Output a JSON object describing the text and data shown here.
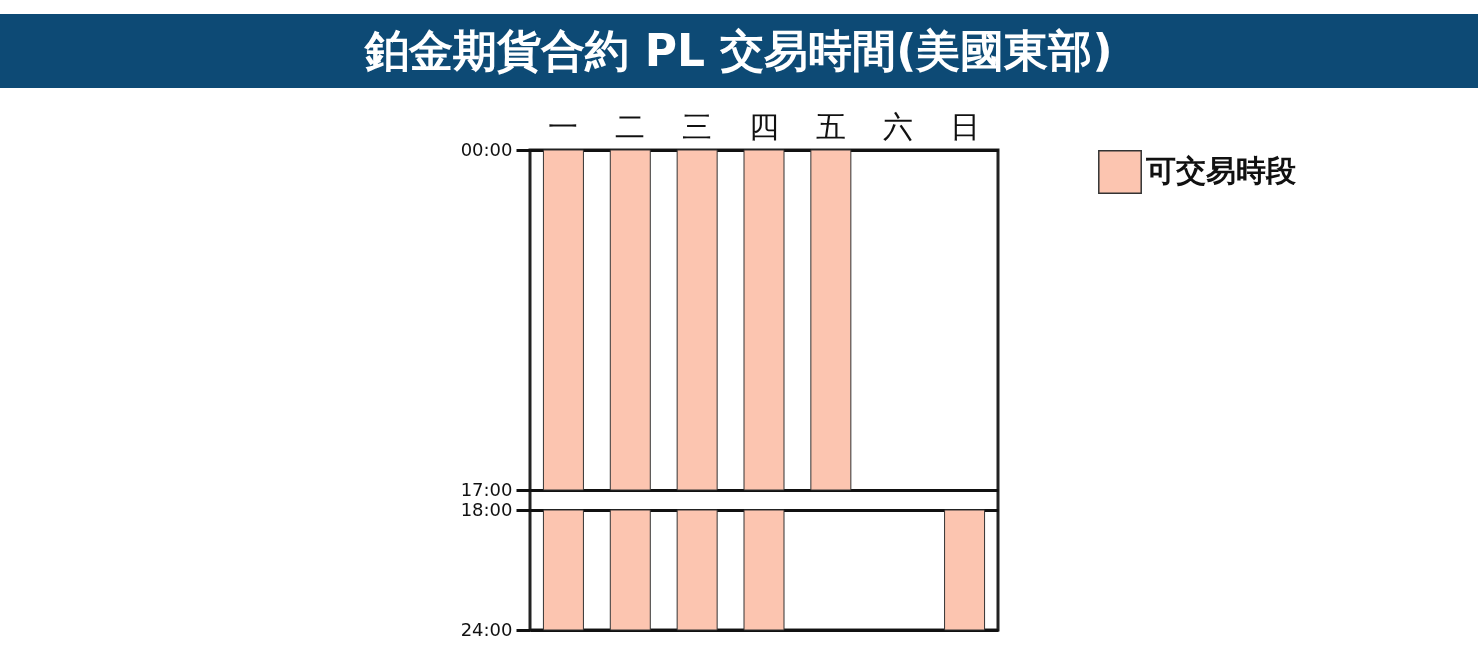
{
  "chart_data": {
    "type": "bar",
    "title": "鉑金期貨合約 PL 交易時間(美國東部)",
    "categories": [
      "一",
      "二",
      "三",
      "四",
      "五",
      "六",
      "日"
    ],
    "series": [
      {
        "name": "可交易時段",
        "color": "#fcc5b0",
        "base": [
          0,
          0,
          0,
          0,
          0,
          null,
          null
        ],
        "values": [
          17,
          17,
          17,
          17,
          17,
          null,
          null
        ]
      },
      {
        "color": "#fcc5b0",
        "base": [
          18,
          18,
          18,
          18,
          null,
          null,
          18
        ],
        "values": [
          6,
          6,
          6,
          6,
          null,
          null,
          6
        ]
      }
    ],
    "ylim": [
      24,
      0
    ],
    "yticks": [
      {
        "value": 0,
        "label": "00:00"
      },
      {
        "value": 17,
        "label": "17:00"
      },
      {
        "value": 18,
        "label": "18:00"
      },
      {
        "value": 24,
        "label": "24:00"
      }
    ],
    "grid": "y",
    "legend": "right"
  }
}
